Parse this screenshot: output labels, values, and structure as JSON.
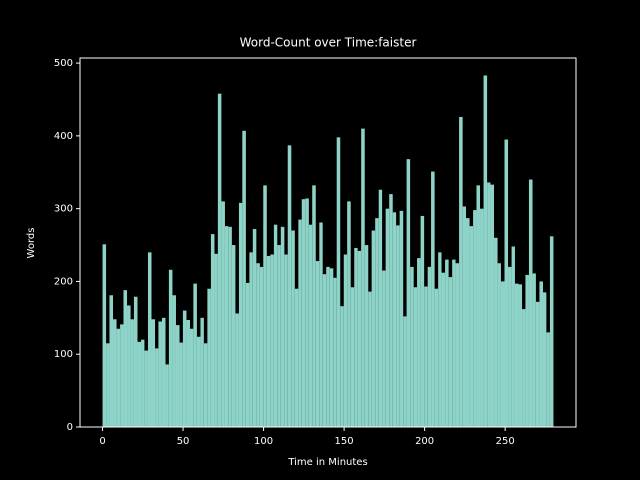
{
  "chart_data": {
    "type": "histogram",
    "title": "Word-Count over Time:faister",
    "xlabel": "Time in Minutes",
    "ylabel": "Words",
    "color": "#8dd3c7",
    "bins": [
      0,
      2.2,
      4.3,
      6.5,
      8.7,
      10.9,
      13.0,
      15.2,
      17.4,
      19.5,
      21.7,
      23.9,
      26.0,
      28.2,
      30.4,
      32.6,
      34.7,
      36.9,
      39.1,
      41.2,
      43.4,
      45.6,
      47.8,
      49.9,
      52.1,
      54.3,
      56.4,
      58.6,
      60.8,
      62.9,
      65.1,
      67.3,
      69.5,
      71.6,
      73.8,
      76.0,
      78.1,
      80.3,
      82.5,
      84.7,
      86.8,
      89.0,
      91.2,
      93.3,
      95.5,
      97.7,
      99.8,
      102.0,
      104.2,
      106.4,
      108.5,
      110.7,
      112.9,
      115.0,
      117.2,
      119.4,
      121.6,
      123.7,
      125.9,
      128.1,
      130.2,
      132.4,
      134.6,
      136.7,
      138.9,
      141.1,
      143.3,
      145.4,
      147.6,
      149.8,
      151.9,
      154.1,
      156.3,
      158.4,
      160.6,
      162.8,
      165.0,
      167.1,
      169.3,
      171.5,
      173.6,
      175.8,
      178.0,
      180.2,
      182.3,
      184.5,
      186.7,
      188.8,
      191.0,
      193.2,
      195.3,
      197.5,
      199.7,
      201.9,
      204.0,
      206.2,
      208.4,
      210.5,
      212.7,
      214.9,
      217.1,
      219.2,
      221.4,
      223.6,
      225.7,
      227.9,
      230.1,
      232.2,
      234.4,
      236.6,
      238.8,
      240.9,
      243.1,
      245.3,
      247.4,
      249.6,
      251.8,
      254.0,
      256.1,
      258.3,
      260.5,
      262.6,
      264.8,
      267.0,
      269.1,
      271.3,
      273.5,
      275.6,
      277.8,
      280.0
    ],
    "values": [
      251,
      115,
      181,
      148,
      135,
      141,
      188,
      167,
      148,
      179,
      117,
      120,
      105,
      240,
      148,
      108,
      145,
      150,
      86,
      216,
      181,
      140,
      116,
      160,
      147,
      135,
      197,
      124,
      150,
      115,
      190,
      265,
      238,
      458,
      310,
      276,
      275,
      250,
      156,
      308,
      407,
      198,
      240,
      272,
      225,
      220,
      332,
      235,
      237,
      278,
      250,
      275,
      237,
      387,
      270,
      190,
      285,
      313,
      314,
      278,
      332,
      228,
      281,
      210,
      220,
      218,
      205,
      398,
      166,
      237,
      310,
      192,
      246,
      242,
      410,
      250,
      186,
      270,
      287,
      326,
      215,
      300,
      320,
      295,
      277,
      297,
      152,
      368,
      220,
      192,
      232,
      290,
      193,
      220,
      351,
      190,
      240,
      212,
      230,
      206,
      230,
      225,
      426,
      303,
      287,
      276,
      298,
      332,
      300,
      483,
      336,
      333,
      260,
      225,
      200,
      395,
      220,
      248,
      197,
      196,
      162,
      209,
      340,
      211,
      172,
      200,
      185,
      130,
      262
    ],
    "xlim": [
      -14,
      294
    ],
    "ylim": [
      0,
      507
    ],
    "xticks": [
      0,
      50,
      100,
      150,
      200,
      250
    ],
    "yticks": [
      0,
      100,
      200,
      300,
      400,
      500
    ]
  }
}
